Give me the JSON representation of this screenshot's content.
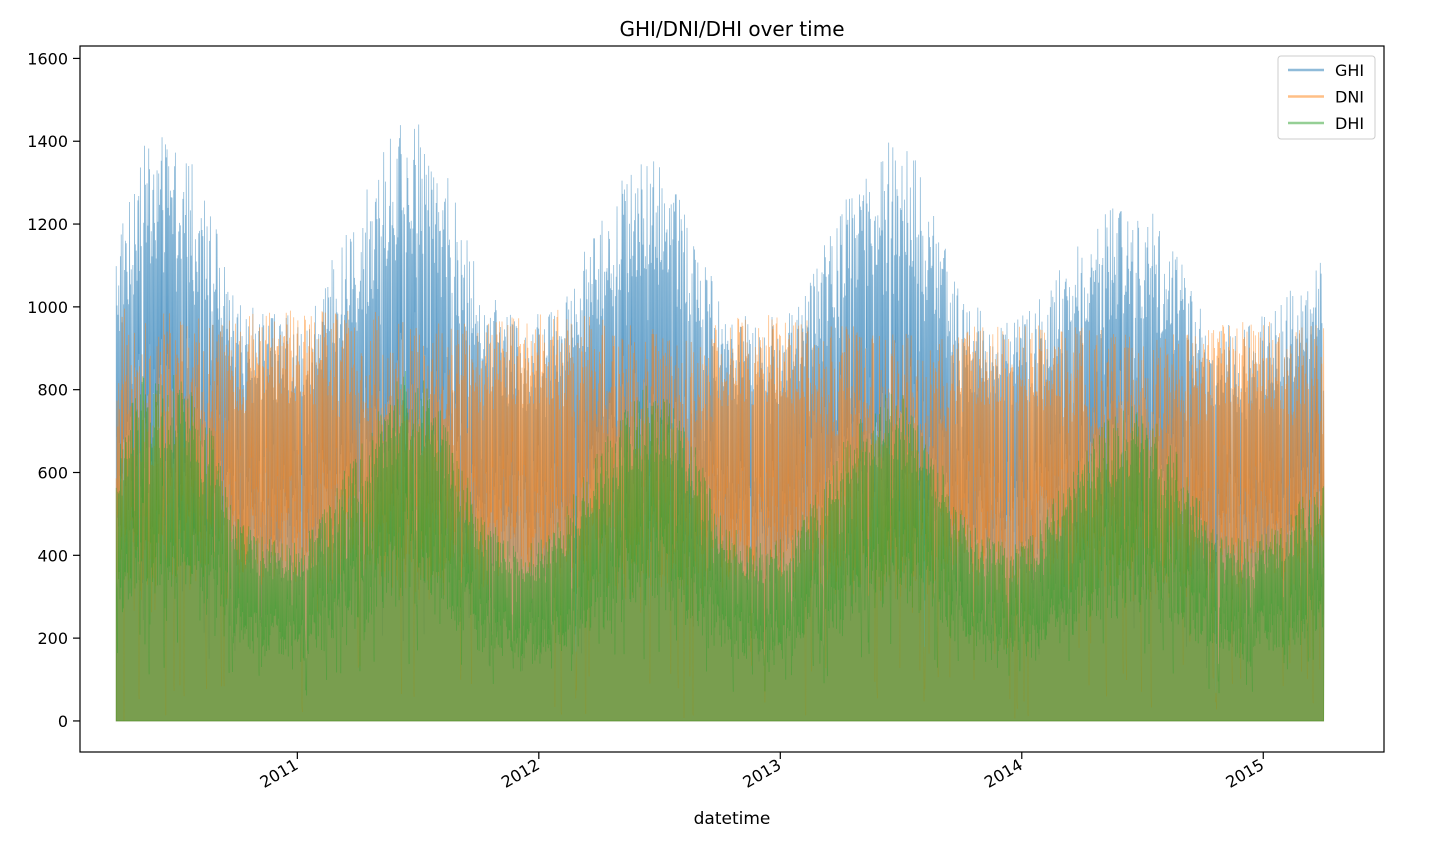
{
  "chart_data": {
    "type": "line",
    "title": "GHI/DNI/DHI over time",
    "xlabel": "datetime",
    "ylabel": "",
    "x_tick_labels": [
      "2011",
      "2012",
      "2013",
      "2014",
      "2015"
    ],
    "x_ticks": [
      2011.0,
      2012.0,
      2013.0,
      2014.0,
      2015.0
    ],
    "xlim": [
      2010.1,
      2015.5
    ],
    "x_start": 2010.25,
    "x_end": 2015.25,
    "ylim": [
      -75,
      1630
    ],
    "y_ticks": [
      0,
      200,
      400,
      600,
      800,
      1000,
      1200,
      1400,
      1600
    ],
    "y_tick_labels": [
      "0",
      "200",
      "400",
      "600",
      "800",
      "1000",
      "1200",
      "1400",
      "1600"
    ],
    "grid": false,
    "legend_position": "top-right",
    "series": [
      {
        "name": "GHI",
        "color": "#1f77b4",
        "alpha": 0.5,
        "envelope_x": [
          2010.25,
          2010.35,
          2010.45,
          2010.55,
          2010.65,
          2010.75,
          2010.85,
          2010.95,
          2011.05,
          2011.15,
          2011.25,
          2011.35,
          2011.45,
          2011.55,
          2011.65,
          2011.75,
          2011.85,
          2011.95,
          2012.05,
          2012.15,
          2012.25,
          2012.35,
          2012.45,
          2012.55,
          2012.65,
          2012.75,
          2012.85,
          2012.95,
          2013.05,
          2013.15,
          2013.25,
          2013.35,
          2013.45,
          2013.55,
          2013.65,
          2013.75,
          2013.85,
          2013.95,
          2014.05,
          2014.15,
          2014.25,
          2014.35,
          2014.45,
          2014.55,
          2014.65,
          2014.75,
          2014.85,
          2014.95,
          2015.05,
          2015.15,
          2015.25
        ],
        "envelope_y": [
          1100,
          1300,
          1320,
          1280,
          1150,
          960,
          920,
          930,
          960,
          1050,
          1150,
          1280,
          1380,
          1350,
          1200,
          1000,
          930,
          900,
          940,
          1020,
          1150,
          1250,
          1300,
          1250,
          1100,
          960,
          920,
          910,
          950,
          1050,
          1150,
          1270,
          1330,
          1280,
          1120,
          960,
          920,
          900,
          940,
          1020,
          1100,
          1150,
          1180,
          1150,
          1050,
          930,
          900,
          900,
          940,
          1000,
          1060
        ]
      },
      {
        "name": "DNI",
        "color": "#ff7f0e",
        "alpha": 0.5,
        "envelope_x": [
          2010.25,
          2010.35,
          2010.45,
          2010.55,
          2010.65,
          2010.75,
          2010.85,
          2010.95,
          2011.05,
          2011.15,
          2011.25,
          2011.35,
          2011.45,
          2011.55,
          2011.65,
          2011.75,
          2011.85,
          2011.95,
          2012.05,
          2012.15,
          2012.25,
          2012.35,
          2012.45,
          2012.55,
          2012.65,
          2012.75,
          2012.85,
          2012.95,
          2013.05,
          2013.15,
          2013.25,
          2013.35,
          2013.45,
          2013.55,
          2013.65,
          2013.75,
          2013.85,
          2013.95,
          2014.05,
          2014.15,
          2014.25,
          2014.35,
          2014.45,
          2014.55,
          2014.65,
          2014.75,
          2014.85,
          2014.95,
          2015.05,
          2015.15,
          2015.25
        ],
        "envelope_y": [
          990,
          1010,
          990,
          980,
          970,
          975,
          990,
          1000,
          1000,
          1010,
          1000,
          990,
          980,
          970,
          960,
          960,
          975,
          985,
          990,
          1000,
          980,
          960,
          950,
          940,
          945,
          960,
          980,
          990,
          980,
          975,
          960,
          950,
          940,
          935,
          940,
          950,
          960,
          965,
          965,
          960,
          950,
          945,
          940,
          935,
          945,
          955,
          960,
          965,
          965,
          960,
          960
        ],
        "floor_y": [
          0,
          120,
          100,
          200,
          300,
          420,
          460,
          480,
          470,
          380,
          300,
          250,
          230,
          220,
          300,
          420,
          480,
          500,
          480,
          380,
          300,
          260,
          250,
          260,
          330,
          440,
          480,
          500,
          460,
          380,
          310,
          260,
          240,
          250,
          320,
          430,
          470,
          490,
          470,
          400,
          330,
          290,
          280,
          290,
          340,
          430,
          460,
          470,
          450,
          380,
          340
        ]
      },
      {
        "name": "DHI",
        "color": "#2ca02c",
        "alpha": 0.5,
        "envelope_x": [
          2010.25,
          2010.35,
          2010.45,
          2010.55,
          2010.65,
          2010.75,
          2010.85,
          2010.95,
          2011.05,
          2011.15,
          2011.25,
          2011.35,
          2011.45,
          2011.55,
          2011.65,
          2011.75,
          2011.85,
          2011.95,
          2012.05,
          2012.15,
          2012.25,
          2012.35,
          2012.45,
          2012.55,
          2012.65,
          2012.75,
          2012.85,
          2012.95,
          2013.05,
          2013.15,
          2013.25,
          2013.35,
          2013.45,
          2013.55,
          2013.65,
          2013.75,
          2013.85,
          2013.95,
          2014.05,
          2014.15,
          2014.25,
          2014.35,
          2014.45,
          2014.55,
          2014.65,
          2014.75,
          2014.85,
          2014.95,
          2015.05,
          2015.15,
          2015.25
        ],
        "envelope_y": [
          600,
          780,
          800,
          760,
          650,
          480,
          420,
          400,
          430,
          520,
          620,
          720,
          800,
          760,
          650,
          480,
          420,
          400,
          430,
          520,
          620,
          700,
          760,
          720,
          620,
          480,
          420,
          400,
          430,
          520,
          620,
          700,
          760,
          720,
          620,
          480,
          420,
          400,
          430,
          520,
          600,
          680,
          720,
          680,
          600,
          480,
          420,
          410,
          440,
          500,
          560
        ]
      }
    ]
  }
}
